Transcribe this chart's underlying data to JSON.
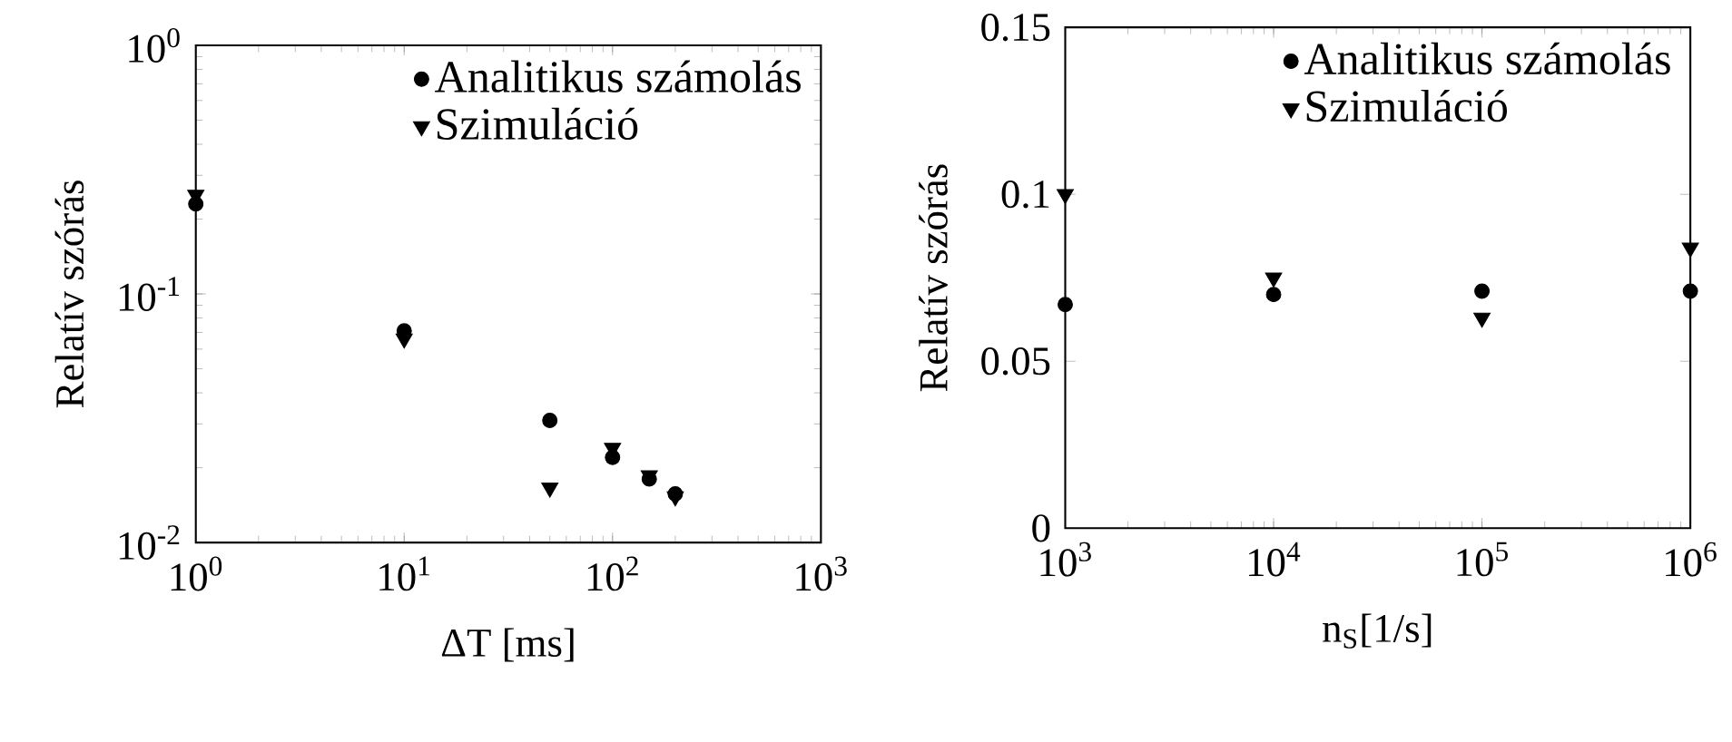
{
  "chart_data": [
    {
      "type": "scatter",
      "xlabel": "ΔT [ms]",
      "ylabel": "Relatív szórás",
      "log": "xy",
      "legend": "top right",
      "grid": false,
      "xlim": [
        1,
        1000
      ],
      "xticks": [
        {
          "value": 1,
          "label": "10$^{0}$"
        },
        {
          "value": 10,
          "label": "10$^{1}$"
        },
        {
          "value": 100,
          "label": "10$^{2}$"
        },
        {
          "value": 1000,
          "label": "10$^{3}$"
        }
      ],
      "ylim": [
        0.01,
        1
      ],
      "yticks": [
        {
          "value": 0.01,
          "label": "10$^{-2}$"
        },
        {
          "value": 0.1,
          "label": "10$^{-1}$"
        },
        {
          "value": 1,
          "label": "10$^{0}$"
        }
      ],
      "x": [
        1,
        10,
        50,
        100,
        150,
        200
      ],
      "series": [
        {
          "name": "Analitikus számolás",
          "color": "#000000",
          "marker": "circle",
          "values": [
            0.23,
            0.071,
            0.031,
            0.022,
            0.018,
            0.0157
          ]
        },
        {
          "name": "Szimuláció",
          "color": "#000000",
          "marker": "triangle",
          "values": [
            0.25,
            0.066,
            0.0166,
            0.024,
            0.0186,
            0.0153
          ]
        }
      ]
    },
    {
      "type": "scatter",
      "xlabel": "n$_{S}$[1/s]",
      "ylabel": "Relatív szórás",
      "log": "x",
      "legend": "top right",
      "grid": false,
      "xlim": [
        1000,
        1000000
      ],
      "xticks": [
        {
          "value": 1000,
          "label": "10$^{3}$"
        },
        {
          "value": 10000,
          "label": "10$^{4}$"
        },
        {
          "value": 100000,
          "label": "10$^{5}$"
        },
        {
          "value": 1000000,
          "label": "10$^{6}$"
        }
      ],
      "ylim": [
        0,
        0.15
      ],
      "yticks": [
        0,
        0.05,
        0.1,
        0.15
      ],
      "x": [
        1000,
        10000,
        100000,
        1000000
      ],
      "series": [
        {
          "name": "Analitikus számolás",
          "color": "#000000",
          "marker": "circle",
          "values": [
            0.067,
            0.07,
            0.071,
            0.071
          ]
        },
        {
          "name": "Szimuláció",
          "color": "#000000",
          "marker": "triangle",
          "values": [
            0.1,
            0.075,
            0.063,
            0.084
          ]
        }
      ]
    }
  ]
}
